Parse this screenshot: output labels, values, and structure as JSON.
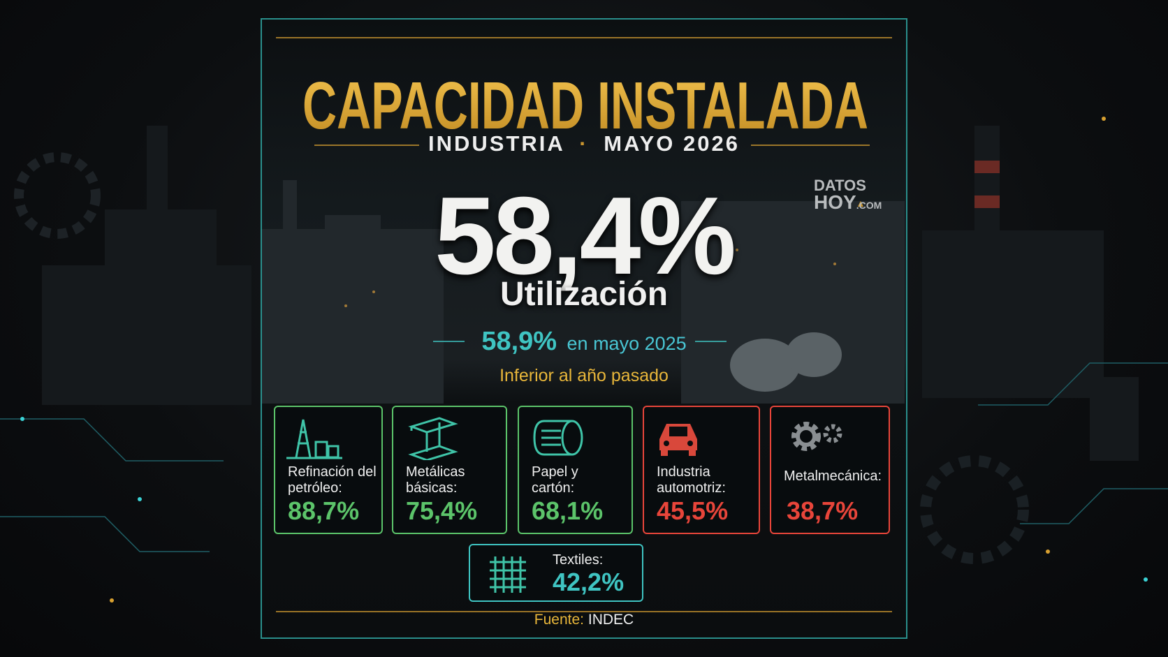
{
  "header": {
    "title": "CAPACIDAD INSTALADA",
    "subtitle_left": "INDUSTRIA",
    "subtitle_right": "MAYO 2026"
  },
  "logo": {
    "line1": "DATOS",
    "line2": "HOY",
    "line3": ".COM"
  },
  "headline": {
    "value": "58,4%",
    "label": "Utilización",
    "comparison_value": "58,9%",
    "comparison_label": "en mayo 2025",
    "note": "Inferior al año pasado"
  },
  "sectors": [
    {
      "label": "Refinación del petróleo:",
      "value": "88,7%",
      "color": "#5cc46a"
    },
    {
      "label": "Metálicas básicas:",
      "value": "75,4%",
      "color": "#5cc46a"
    },
    {
      "label": "Papel y cartón:",
      "value": "68,1%",
      "color": "#5cc46a"
    },
    {
      "label": "Industria automotriz:",
      "value": "45,5%",
      "color": "#e8453a"
    },
    {
      "label": "Metalmecánica:",
      "value": "38,7%",
      "color": "#e8453a"
    },
    {
      "label": "Textiles:",
      "value": "42,2%",
      "color": "#3fc4c2"
    }
  ],
  "footer": {
    "source_label": "Fuente:",
    "source": "INDEC"
  }
}
